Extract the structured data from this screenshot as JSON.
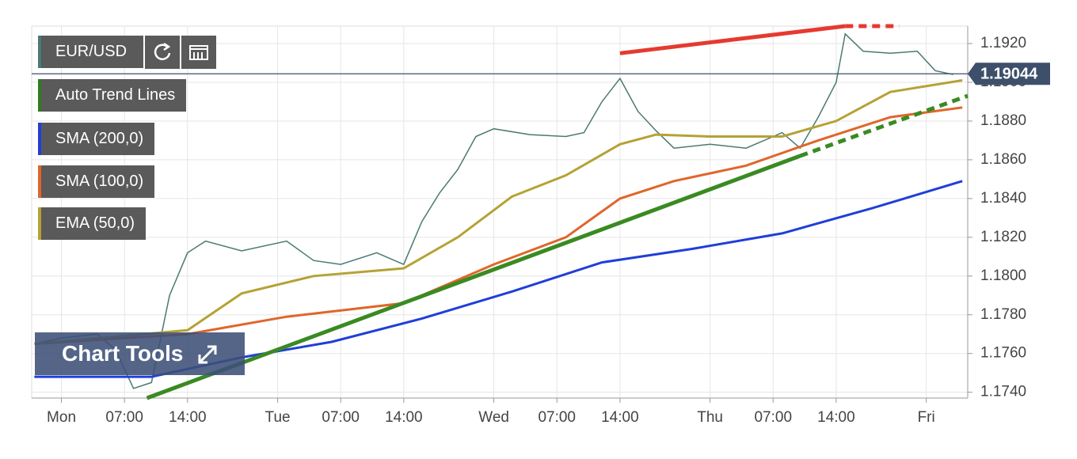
{
  "chart_data": {
    "type": "line",
    "symbol_label": "EUR/USD",
    "tools_label": "Chart Tools",
    "last_price": 1.19044,
    "last_price_color": "#3d4f6b",
    "grid": true,
    "xlim": [
      -3.3,
      100.6
    ],
    "ylim": [
      1.1737,
      1.1929
    ],
    "xticks": [
      {
        "value": 0,
        "label": "Mon"
      },
      {
        "value": 7,
        "label": "07:00"
      },
      {
        "value": 14,
        "label": "14:00"
      },
      {
        "value": 24,
        "label": "Tue"
      },
      {
        "value": 31,
        "label": "07:00"
      },
      {
        "value": 38,
        "label": "14:00"
      },
      {
        "value": 48,
        "label": "Wed"
      },
      {
        "value": 55,
        "label": "07:00"
      },
      {
        "value": 62,
        "label": "14:00"
      },
      {
        "value": 72,
        "label": "Thu"
      },
      {
        "value": 79,
        "label": "07:00"
      },
      {
        "value": 86,
        "label": "14:00"
      },
      {
        "value": 96,
        "label": "Fri"
      }
    ],
    "yticks": [
      {
        "value": 1.174,
        "label": "1.1740"
      },
      {
        "value": 1.176,
        "label": "1.1760"
      },
      {
        "value": 1.178,
        "label": "1.1780"
      },
      {
        "value": 1.18,
        "label": "1.1800"
      },
      {
        "value": 1.182,
        "label": "1.1820"
      },
      {
        "value": 1.184,
        "label": "1.1840"
      },
      {
        "value": 1.186,
        "label": "1.1860"
      },
      {
        "value": 1.188,
        "label": "1.1880"
      },
      {
        "value": 1.19,
        "label": "1.1900"
      },
      {
        "value": 1.192,
        "label": "1.1920"
      }
    ],
    "series": [
      {
        "name": "EUR/USD",
        "color": "#4a7a70",
        "width": 1.5,
        "x": [
          -3,
          0,
          4,
          6,
          8,
          10,
          12,
          14,
          16,
          20,
          25,
          28,
          31,
          35,
          38,
          40,
          42,
          44,
          46,
          48,
          52,
          56,
          58,
          60,
          62,
          64,
          66,
          68,
          72,
          76,
          78,
          80,
          82,
          84,
          86,
          87,
          89,
          92,
          95,
          97,
          99
        ],
        "values": [
          1.1765,
          1.1768,
          1.177,
          1.1762,
          1.1742,
          1.1745,
          1.179,
          1.1812,
          1.1818,
          1.1813,
          1.1818,
          1.1808,
          1.1806,
          1.1812,
          1.1806,
          1.1828,
          1.1843,
          1.1855,
          1.1872,
          1.1876,
          1.1873,
          1.1872,
          1.1874,
          1.189,
          1.1902,
          1.1885,
          1.1875,
          1.1866,
          1.1868,
          1.1866,
          1.187,
          1.1874,
          1.1866,
          1.1882,
          1.19,
          1.1925,
          1.1916,
          1.1915,
          1.1916,
          1.1906,
          1.1904
        ]
      },
      {
        "name": "SMA (200,0)",
        "color": "#1f3fd8",
        "width": 3,
        "x": [
          -3,
          10,
          20,
          30,
          40,
          50,
          60,
          70,
          80,
          90,
          100
        ],
        "values": [
          1.1748,
          1.1748,
          1.1758,
          1.1766,
          1.1778,
          1.1792,
          1.1807,
          1.1814,
          1.1822,
          1.1835,
          1.1849
        ]
      },
      {
        "name": "SMA (100,0)",
        "color": "#e0662a",
        "width": 3,
        "x": [
          -3,
          14,
          25,
          38,
          48,
          56,
          62,
          68,
          76,
          84,
          92,
          100
        ],
        "values": [
          1.1765,
          1.177,
          1.1779,
          1.1786,
          1.1806,
          1.182,
          1.184,
          1.1849,
          1.1857,
          1.187,
          1.1882,
          1.1887
        ]
      },
      {
        "name": "EMA (50,0)",
        "color": "#b5a234",
        "width": 3,
        "x": [
          -3,
          14,
          20,
          28,
          38,
          44,
          50,
          56,
          62,
          66,
          72,
          80,
          86,
          92,
          100
        ],
        "values": [
          1.1765,
          1.1772,
          1.1791,
          1.18,
          1.1804,
          1.182,
          1.1841,
          1.1852,
          1.1868,
          1.1873,
          1.1872,
          1.1872,
          1.188,
          1.1895,
          1.1901
        ]
      }
    ],
    "trend_legend": {
      "name": "Auto Trend Lines",
      "color": "#2e7d1e"
    },
    "trend_lines": [
      {
        "color": "#3a8a22",
        "dashed": false,
        "x": [
          9.5,
          82
        ],
        "values": [
          1.1737,
          1.1862
        ]
      },
      {
        "color": "#3a8a22",
        "dashed": true,
        "x": [
          82,
          100.6
        ],
        "values": [
          1.1862,
          1.1893
        ]
      },
      {
        "color": "#e53a30",
        "dashed": false,
        "x": [
          62,
          87
        ],
        "values": [
          1.1915,
          1.1929
        ]
      },
      {
        "color": "#e53a30",
        "dashed": true,
        "x": [
          87,
          93
        ],
        "values": [
          1.1929,
          1.1929
        ]
      }
    ]
  }
}
